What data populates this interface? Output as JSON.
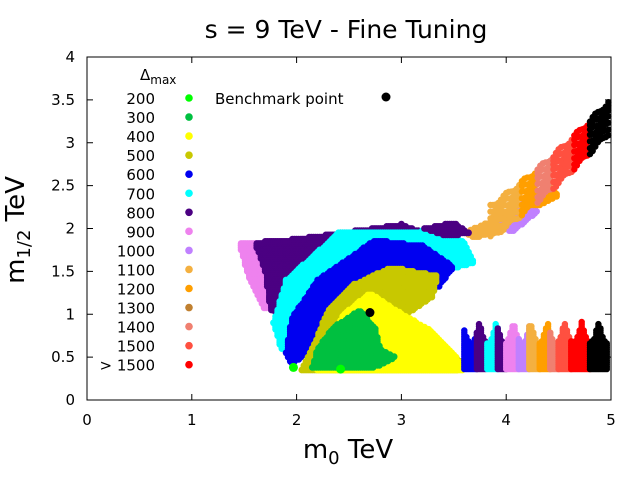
{
  "chart_data": {
    "type": "scatter",
    "title": "s = 9 TeV - Fine Tuning",
    "xlabel": "m",
    "xlabel_sub": "0",
    "xlabel_unit": " TeV",
    "ylabel": "m",
    "ylabel_sub": "1/2",
    "ylabel_unit": " TeV",
    "xlim": [
      0,
      5
    ],
    "ylim": [
      0,
      4
    ],
    "xticks": [
      "0",
      "1",
      "2",
      "3",
      "4",
      "5"
    ],
    "yticks": [
      "0",
      "0.5",
      "1",
      "1.5",
      "2",
      "2.5",
      "3",
      "3.5",
      "4"
    ],
    "legend_title": "Δ",
    "legend_title_sub": "max",
    "legend_position": "top-left",
    "benchmark": {
      "label": "Benchmark point",
      "x": 2.7,
      "y": 1.02,
      "color": "#000000"
    },
    "series": [
      {
        "name": "200",
        "color": "#00ff00"
      },
      {
        "name": "300",
        "color": "#00c040"
      },
      {
        "name": "400",
        "color": "#ffff00"
      },
      {
        "name": "500",
        "color": "#c8c800"
      },
      {
        "name": "600",
        "color": "#0000f0"
      },
      {
        "name": "700",
        "color": "#00ffff"
      },
      {
        "name": "800",
        "color": "#4b0082"
      },
      {
        "name": "900",
        "color": "#ee82ee"
      },
      {
        "name": "1000",
        "color": "#c080ff"
      },
      {
        "name": "1100",
        "color": "#f4b040"
      },
      {
        "name": "1200",
        "color": "#ff9f00"
      },
      {
        "name": "1300",
        "color": "#c08030"
      },
      {
        "name": "1400",
        "color": "#f08070"
      },
      {
        "name": "1500",
        "color": "#ff5040"
      },
      {
        "name": "> 1500",
        "color": "#ff0000"
      }
    ],
    "regions": [
      {
        "series": 7,
        "points": [
          [
            1.45,
            1.83
          ],
          [
            2.1,
            1.88
          ],
          [
            2.6,
            1.96
          ],
          [
            2.0,
            1.65
          ],
          [
            1.85,
            1.35
          ],
          [
            1.7,
            1.05
          ],
          [
            1.55,
            1.4
          ]
        ]
      },
      {
        "series": 6,
        "points": [
          [
            2.0,
            1.88
          ],
          [
            3.0,
            2.05
          ],
          [
            3.35,
            1.9
          ],
          [
            2.65,
            1.58
          ],
          [
            2.15,
            1.3
          ],
          [
            1.92,
            0.95
          ],
          [
            1.75,
            1.05
          ],
          [
            1.7,
            1.5
          ],
          [
            1.6,
            1.84
          ]
        ]
      },
      {
        "series": 5,
        "points": [
          [
            2.4,
            1.95
          ],
          [
            3.35,
            1.98
          ],
          [
            3.6,
            1.85
          ],
          [
            3.7,
            1.6
          ],
          [
            3.4,
            1.5
          ],
          [
            2.9,
            1.55
          ],
          [
            2.45,
            1.25
          ],
          [
            2.05,
            0.92
          ],
          [
            1.95,
            0.6
          ],
          [
            1.85,
            0.6
          ],
          [
            1.78,
            0.9
          ],
          [
            1.9,
            1.4
          ]
        ]
      },
      {
        "series": 4,
        "points": [
          [
            2.75,
            1.87
          ],
          [
            3.2,
            1.8
          ],
          [
            3.5,
            1.55
          ],
          [
            3.35,
            1.3
          ],
          [
            2.95,
            1.5
          ],
          [
            2.6,
            1.3
          ],
          [
            2.25,
            0.9
          ],
          [
            2.1,
            0.55
          ],
          [
            1.95,
            0.4
          ],
          [
            1.9,
            0.55
          ],
          [
            1.95,
            0.95
          ],
          [
            2.2,
            1.4
          ]
        ]
      },
      {
        "series": 3,
        "points": [
          [
            2.9,
            1.55
          ],
          [
            3.35,
            1.45
          ],
          [
            3.3,
            1.2
          ],
          [
            3.0,
            0.95
          ],
          [
            3.05,
            0.65
          ],
          [
            3.6,
            0.45
          ],
          [
            3.55,
            0.35
          ],
          [
            2.05,
            0.35
          ],
          [
            2.15,
            0.6
          ],
          [
            2.3,
            1.05
          ],
          [
            2.55,
            1.35
          ]
        ]
      },
      {
        "series": 2,
        "points": [
          [
            2.95,
            1.05
          ],
          [
            3.3,
            0.8
          ],
          [
            3.5,
            0.55
          ],
          [
            3.6,
            0.35
          ],
          [
            2.2,
            0.35
          ],
          [
            2.3,
            0.65
          ],
          [
            2.45,
            1.0
          ],
          [
            2.7,
            1.25
          ]
        ]
      },
      {
        "series": 1,
        "points": [
          [
            2.35,
            0.85
          ],
          [
            2.6,
            1.05
          ],
          [
            2.75,
            0.85
          ],
          [
            2.8,
            0.6
          ],
          [
            2.95,
            0.5
          ],
          [
            2.75,
            0.38
          ],
          [
            2.15,
            0.38
          ],
          [
            2.2,
            0.6
          ]
        ]
      },
      {
        "series": 9,
        "points": [
          [
            3.6,
            1.96
          ],
          [
            4.0,
            2.15
          ],
          [
            4.05,
            2.05
          ],
          [
            3.7,
            1.88
          ]
        ]
      },
      {
        "series": 6,
        "points": [
          [
            3.2,
            2.0
          ],
          [
            3.5,
            2.07
          ],
          [
            3.65,
            1.95
          ],
          [
            3.45,
            1.9
          ]
        ]
      },
      {
        "series": 8,
        "points": [
          [
            3.95,
            2.05
          ],
          [
            4.2,
            2.35
          ],
          [
            4.3,
            2.2
          ],
          [
            4.05,
            1.95
          ]
        ]
      },
      {
        "series": 10,
        "points": [
          [
            4.2,
            2.3
          ],
          [
            4.4,
            2.5
          ],
          [
            4.5,
            2.38
          ],
          [
            4.3,
            2.25
          ]
        ]
      }
    ],
    "band_right_upper": [
      {
        "series": 9,
        "x0": 3.85,
        "x1": 4.15
      },
      {
        "series": 10,
        "x0": 4.15,
        "x1": 4.3
      },
      {
        "series": 12,
        "x0": 4.3,
        "x1": 4.45
      },
      {
        "series": 13,
        "x0": 4.45,
        "x1": 4.65
      },
      {
        "series": 14,
        "x0": 4.65,
        "x1": 4.8
      },
      {
        "series": 15,
        "x0": 4.8,
        "x1": 5.0
      }
    ],
    "band_right_lower": [
      {
        "series": 4,
        "x0": 3.6,
        "x1": 3.72
      },
      {
        "series": 6,
        "x0": 3.72,
        "x1": 3.82
      },
      {
        "series": 5,
        "x0": 3.82,
        "x1": 3.92
      },
      {
        "series": 6,
        "x0": 3.92,
        "x1": 4.0
      },
      {
        "series": 7,
        "x0": 4.0,
        "x1": 4.12
      },
      {
        "series": 8,
        "x0": 4.12,
        "x1": 4.22
      },
      {
        "series": 9,
        "x0": 4.22,
        "x1": 4.32
      },
      {
        "series": 10,
        "x0": 4.32,
        "x1": 4.42
      },
      {
        "series": 12,
        "x0": 4.42,
        "x1": 4.5
      },
      {
        "series": 13,
        "x0": 4.5,
        "x1": 4.62
      },
      {
        "series": 14,
        "x0": 4.62,
        "x1": 4.8
      },
      {
        "series": 15,
        "x0": 4.8,
        "x1": 4.97
      }
    ],
    "isolated_points": [
      {
        "series": 0,
        "x": 1.97,
        "y": 0.38
      },
      {
        "series": 0,
        "x": 2.42,
        "y": 0.36
      }
    ]
  }
}
